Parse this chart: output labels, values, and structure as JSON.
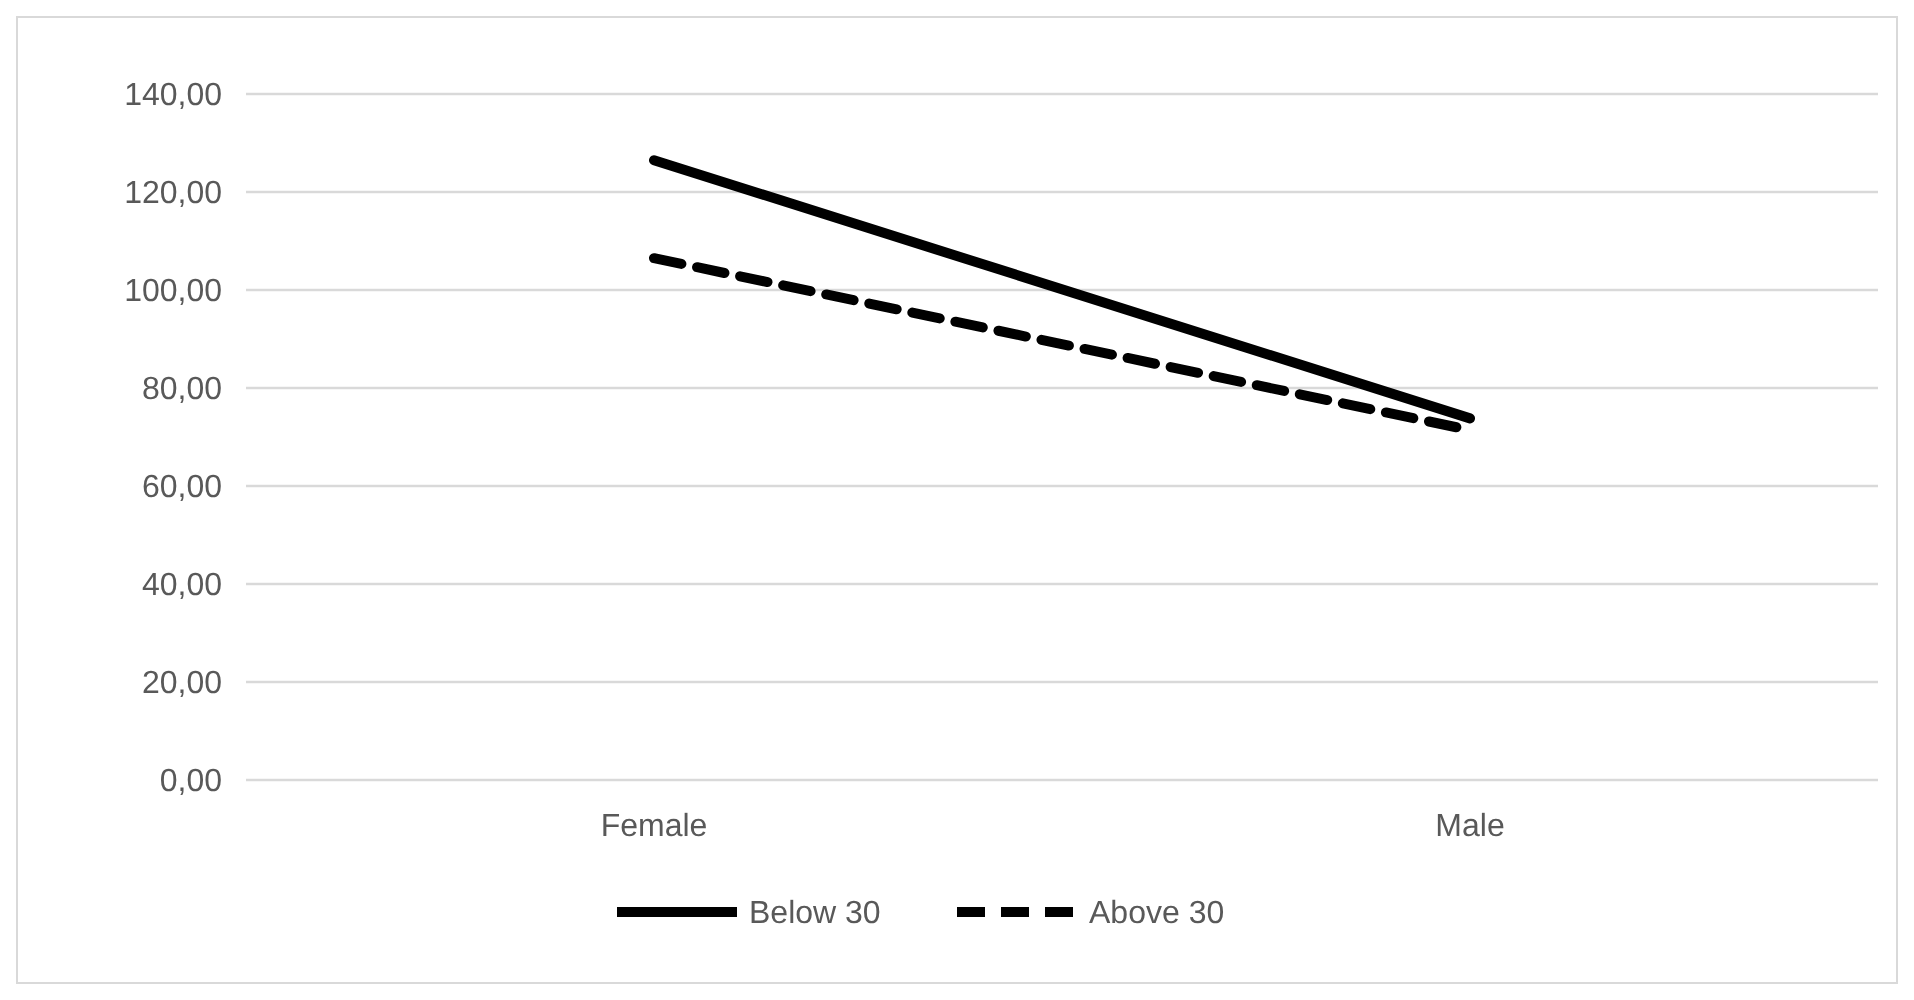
{
  "chart_data": {
    "type": "line",
    "categories": [
      "Female",
      "Male"
    ],
    "series": [
      {
        "name": "Below 30",
        "color": "#000000",
        "values": [
          126.5,
          73.8
        ],
        "line_style": "solid"
      },
      {
        "name": "Above 30",
        "color": "#000000",
        "values": [
          106.5,
          71.4
        ],
        "line_style": "dashed"
      }
    ],
    "ylim": [
      0,
      140
    ],
    "yticks": [
      {
        "value": 0,
        "label": "0,00"
      },
      {
        "value": 20,
        "label": "20,00"
      },
      {
        "value": 40,
        "label": "40,00"
      },
      {
        "value": 60,
        "label": "60,00"
      },
      {
        "value": 80,
        "label": "80,00"
      },
      {
        "value": 100,
        "label": "100,00"
      },
      {
        "value": 120,
        "label": "120,00"
      },
      {
        "value": 140,
        "label": "140,00"
      }
    ],
    "grid": "y",
    "legend": "bottom",
    "marker": "none"
  }
}
